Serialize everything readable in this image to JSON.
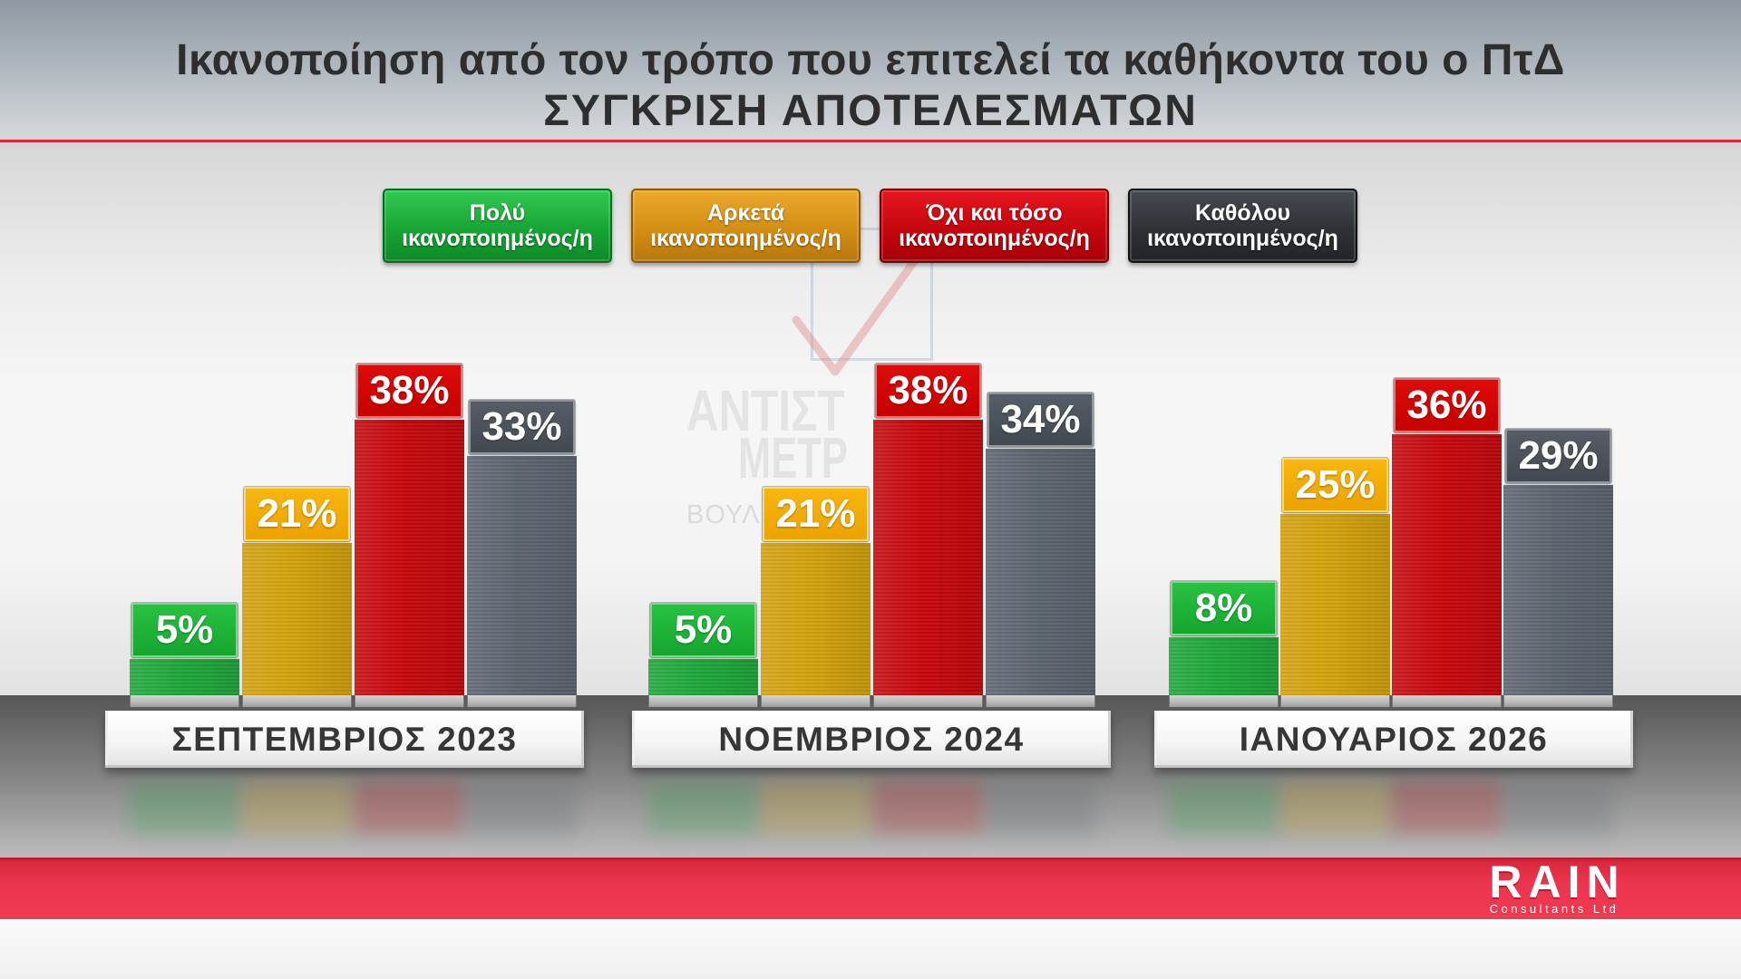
{
  "chart_data": {
    "type": "bar",
    "title": "Ικανοποίηση από τον τρόπο που επιτελεί τα καθήκοντα του ο ΠτΔ",
    "subtitle": "ΣΥΓΚΡΙΣΗ ΑΠΟΤΕΛΕΣΜΑΤΩΝ",
    "categories": [
      "ΣΕΠΤΕΜΒΡΙΟΣ 2023",
      "ΝΟΕΜΒΡΙΟΣ 2024",
      "ΙΑΝΟΥΑΡΙΟΣ 2026"
    ],
    "series": [
      {
        "name_lines": [
          "Πολύ",
          "ικανοποιημένος/η"
        ],
        "color": "#1ea83a",
        "values": [
          5,
          5,
          8
        ],
        "labels": [
          "5%",
          "5%",
          "8%"
        ]
      },
      {
        "name_lines": [
          "Αρκετά",
          "ικανοποιημένος/η"
        ],
        "color": "#d4a20c",
        "values": [
          21,
          21,
          25
        ],
        "labels": [
          "21%",
          "21%",
          "25%"
        ]
      },
      {
        "name_lines": [
          "Όχι και τόσο",
          "ικανοποιημένος/η"
        ],
        "color": "#c8070c",
        "values": [
          38,
          38,
          36
        ],
        "labels": [
          "38%",
          "38%",
          "36%"
        ]
      },
      {
        "name_lines": [
          "Καθόλου",
          "ικανοποιημένος/η"
        ],
        "color": "#5d6570",
        "values": [
          33,
          34,
          29
        ],
        "labels": [
          "33%",
          "34%",
          "29%"
        ]
      }
    ],
    "legend_position": "top",
    "grid": false
  },
  "watermark": {
    "lines": [
      "ΑΝΤΙΣΤ",
      "ΜΕΤΡ",
      "ΒΟΥΛ"
    ]
  },
  "logo": {
    "brand": "RAIN",
    "tagline": "Consultants Ltd"
  },
  "colors": {
    "header_rule": "#d8283c",
    "footer_band": "#ee3650"
  }
}
